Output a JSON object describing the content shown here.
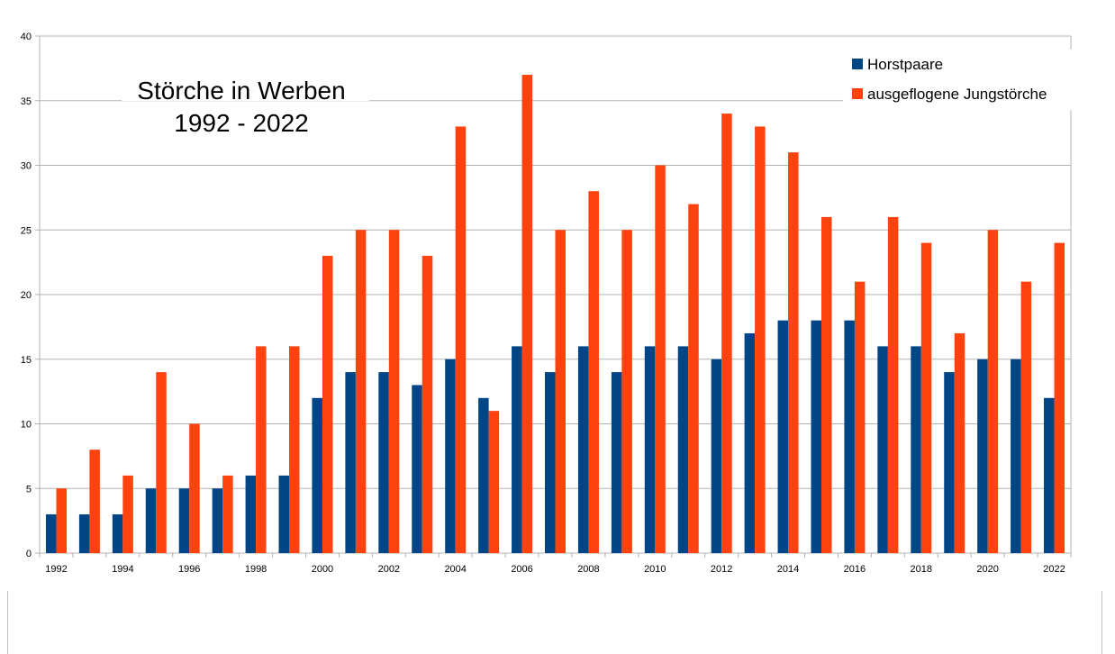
{
  "chart_data": {
    "type": "bar",
    "title": [
      "Störche in Werben",
      "1992 - 2022"
    ],
    "categories": [
      "1992",
      "1993",
      "1994",
      "1995",
      "1996",
      "1997",
      "1998",
      "1999",
      "2000",
      "2001",
      "2002",
      "2003",
      "2004",
      "2005",
      "2006",
      "2007",
      "2008",
      "2009",
      "2010",
      "2011",
      "2012",
      "2013",
      "2014",
      "2015",
      "2016",
      "2017",
      "2018",
      "2019",
      "2020",
      "2021",
      "2022"
    ],
    "x_tick_labels": [
      "1992",
      "1994",
      "1996",
      "1998",
      "2000",
      "2002",
      "2004",
      "2006",
      "2008",
      "2010",
      "2012",
      "2014",
      "2016",
      "2018",
      "2020",
      "2022"
    ],
    "y_ticks": [
      "0",
      "5",
      "10",
      "15",
      "20",
      "25",
      "30",
      "35",
      "40"
    ],
    "ylim": [
      0,
      40
    ],
    "grid": true,
    "legend_position": "top-right",
    "series": [
      {
        "name": "Horstpaare",
        "color": "#004586",
        "values": [
          3,
          3,
          3,
          5,
          5,
          5,
          6,
          6,
          12,
          14,
          14,
          13,
          15,
          12,
          16,
          14,
          16,
          14,
          16,
          16,
          15,
          17,
          18,
          18,
          18,
          16,
          16,
          14,
          15,
          15,
          12
        ]
      },
      {
        "name": "ausgeflogene Jungstörche",
        "color": "#ff420e",
        "values": [
          5,
          8,
          6,
          14,
          10,
          6,
          16,
          16,
          23,
          25,
          25,
          23,
          33,
          11,
          37,
          25,
          28,
          25,
          30,
          27,
          34,
          33,
          31,
          26,
          21,
          26,
          24,
          17,
          25,
          21,
          24
        ]
      }
    ]
  }
}
